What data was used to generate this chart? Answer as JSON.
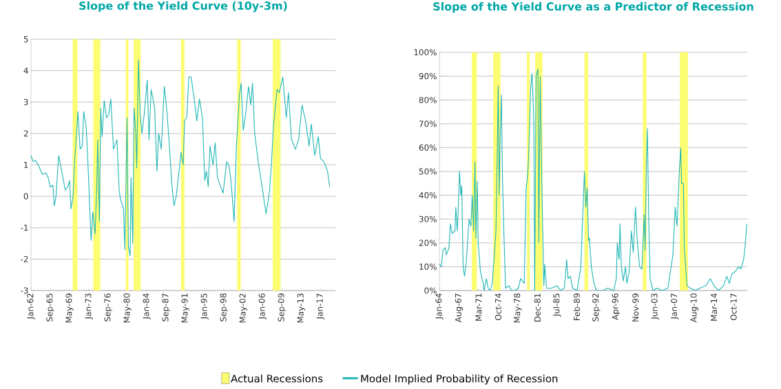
{
  "chart_data": [
    {
      "type": "line",
      "title": "Slope of the Yield Curve (10y-3m)",
      "xlim": [
        "1962-01",
        "2019-11"
      ],
      "ylim": [
        -3,
        5
      ],
      "xticks": [
        {
          "value": "1962-01",
          "label": "Jan-62"
        },
        {
          "value": "1965-09",
          "label": "Sep-65"
        },
        {
          "value": "1969-05",
          "label": "May-69"
        },
        {
          "value": "1973-01",
          "label": "Jan-73"
        },
        {
          "value": "1976-09",
          "label": "Sep-76"
        },
        {
          "value": "1980-05",
          "label": "May-80"
        },
        {
          "value": "1984-01",
          "label": "Jan-84"
        },
        {
          "value": "1987-09",
          "label": "Sep-87"
        },
        {
          "value": "1991-05",
          "label": "May-91"
        },
        {
          "value": "1995-01",
          "label": "Jan-95"
        },
        {
          "value": "1998-09",
          "label": "Sep-98"
        },
        {
          "value": "2002-05",
          "label": "May-02"
        },
        {
          "value": "2006-01",
          "label": "Jan-06"
        },
        {
          "value": "2009-09",
          "label": "Sep-09"
        },
        {
          "value": "2013-05",
          "label": "May-13"
        },
        {
          "value": "2017-01",
          "label": "Jan-17"
        }
      ],
      "yticks": [
        -3,
        -2,
        -1,
        0,
        1,
        2,
        3,
        4,
        5
      ],
      "grid": "y",
      "bands": [
        {
          "axis": "x",
          "from": "1969-12",
          "to": "1970-11",
          "label": null,
          "color": "#fdfd72"
        },
        {
          "axis": "x",
          "from": "1973-11",
          "to": "1975-03",
          "label": null,
          "color": "#fdfd72"
        },
        {
          "axis": "x",
          "from": "1980-01",
          "to": "1980-07",
          "label": null,
          "color": "#fdfd72"
        },
        {
          "axis": "x",
          "from": "1981-07",
          "to": "1982-11",
          "label": null,
          "color": "#fdfd72"
        },
        {
          "axis": "x",
          "from": "1990-07",
          "to": "1991-03",
          "label": null,
          "color": "#fdfd72"
        },
        {
          "axis": "x",
          "from": "2001-03",
          "to": "2001-11",
          "label": null,
          "color": "#fdfd72"
        },
        {
          "axis": "x",
          "from": "2007-12",
          "to": "2009-06",
          "label": null,
          "color": "#fdfd72"
        }
      ],
      "series": [
        {
          "color": "#1fb5b5",
          "x": [
            "1962-01",
            "1962-06",
            "1962-11",
            "1963-07",
            "1964-03",
            "1964-11",
            "1965-04",
            "1965-09",
            "1966-03",
            "1966-06",
            "1966-10",
            "1967-04",
            "1967-11",
            "1968-07",
            "1969-01",
            "1969-05",
            "1969-08",
            "1970-01",
            "1970-04",
            "1970-12",
            "1971-05",
            "1971-10",
            "1972-01",
            "1972-07",
            "1972-11",
            "1973-06",
            "1973-10",
            "1974-03",
            "1974-07",
            "1974-09",
            "1975-01",
            "1975-04",
            "1975-07",
            "1975-12",
            "1976-05",
            "1976-10",
            "1977-03",
            "1977-09",
            "1978-05",
            "1978-10",
            "1979-01",
            "1979-08",
            "1979-11",
            "1980-04",
            "1980-07",
            "1980-11",
            "1981-01",
            "1981-05",
            "1981-08",
            "1981-12",
            "1982-02",
            "1982-06",
            "1982-10",
            "1983-02",
            "1983-07",
            "1984-02",
            "1984-06",
            "1984-11",
            "1985-07",
            "1985-12",
            "1986-04",
            "1986-10",
            "1987-05",
            "1987-11",
            "1988-05",
            "1988-10",
            "1989-03",
            "1989-08",
            "1990-01",
            "1990-07",
            "1990-12",
            "1991-03",
            "1991-08",
            "1992-01",
            "1992-06",
            "1992-09",
            "1993-02",
            "1993-07",
            "1994-01",
            "1994-08",
            "1995-01",
            "1995-05",
            "1995-09",
            "1996-01",
            "1996-08",
            "1997-01",
            "1997-06",
            "1997-11",
            "1998-07",
            "1999-03",
            "1999-08",
            "2000-01",
            "2000-08",
            "2001-01",
            "2001-08",
            "2001-12",
            "2002-05",
            "2002-11",
            "2003-05",
            "2003-10",
            "2004-02",
            "2004-07",
            "2005-04",
            "2005-12",
            "2006-05",
            "2006-09",
            "2007-01",
            "2007-05",
            "2007-09",
            "2008-02",
            "2008-10",
            "2009-03",
            "2009-11",
            "2010-07",
            "2010-12",
            "2011-07",
            "2012-04",
            "2012-11",
            "2013-07",
            "2014-03",
            "2014-11",
            "2015-04",
            "2015-12",
            "2016-08",
            "2017-01",
            "2017-09",
            "2018-05",
            "2018-10"
          ],
          "values": [
            1.3,
            1.1,
            1.15,
            0.95,
            0.7,
            0.75,
            0.6,
            0.3,
            0.35,
            -0.3,
            0.0,
            1.3,
            0.8,
            0.2,
            0.3,
            0.5,
            -0.4,
            0.0,
            1.0,
            2.7,
            1.5,
            1.6,
            2.7,
            2.2,
            1.0,
            -1.4,
            -0.5,
            -1.2,
            0.3,
            1.8,
            -0.8,
            2.8,
            1.9,
            3.05,
            2.5,
            2.6,
            3.1,
            1.5,
            1.8,
            0.2,
            -0.1,
            -0.4,
            -1.7,
            2.5,
            -1.6,
            -1.9,
            0.6,
            -1.5,
            2.8,
            2.0,
            0.9,
            4.35,
            2.6,
            2.0,
            2.6,
            3.7,
            1.8,
            3.4,
            2.8,
            0.8,
            2.0,
            1.5,
            3.5,
            2.7,
            1.5,
            0.4,
            -0.3,
            0.0,
            0.6,
            1.4,
            1.0,
            2.4,
            2.5,
            3.8,
            3.8,
            3.5,
            3.0,
            2.4,
            3.1,
            2.5,
            0.5,
            0.8,
            0.3,
            1.6,
            1.0,
            1.7,
            0.6,
            0.4,
            0.1,
            1.1,
            1.0,
            0.5,
            -0.8,
            1.5,
            3.2,
            3.6,
            2.1,
            2.7,
            3.5,
            2.9,
            3.6,
            2.0,
            1.0,
            0.3,
            -0.2,
            -0.55,
            -0.2,
            0.2,
            1.0,
            2.3,
            3.4,
            3.3,
            3.8,
            2.5,
            3.3,
            1.8,
            1.5,
            1.8,
            2.9,
            2.4,
            1.6,
            2.3,
            1.3,
            1.9,
            1.2,
            1.1,
            0.8,
            0.3
          ]
        }
      ]
    },
    {
      "type": "line",
      "title": "Slope of the Yield Curve as a Predictor of Recession",
      "xlim": [
        "1964-01",
        "2020-04"
      ],
      "ylim": [
        0,
        100
      ],
      "xticks": [
        {
          "value": "1964-01",
          "label": "Jan-64"
        },
        {
          "value": "1967-08",
          "label": "Aug-67"
        },
        {
          "value": "1971-03",
          "label": "Mar-71"
        },
        {
          "value": "1974-10",
          "label": "Oct-74"
        },
        {
          "value": "1978-05",
          "label": "May-78"
        },
        {
          "value": "1981-12",
          "label": "Dec-81"
        },
        {
          "value": "1985-07",
          "label": "Jul-85"
        },
        {
          "value": "1989-02",
          "label": "Feb-89"
        },
        {
          "value": "1992-09",
          "label": "Sep-92"
        },
        {
          "value": "1996-04",
          "label": "Apr-96"
        },
        {
          "value": "1999-11",
          "label": "Nov-99"
        },
        {
          "value": "2003-06",
          "label": "Jun-03"
        },
        {
          "value": "2007-01",
          "label": "Jan-07"
        },
        {
          "value": "2010-08",
          "label": "Aug-10"
        },
        {
          "value": "2014-03",
          "label": "Mar-14"
        },
        {
          "value": "2017-10",
          "label": "Oct-17"
        }
      ],
      "yticks": [
        {
          "value": 0,
          "label": "0%"
        },
        {
          "value": 10,
          "label": "10%"
        },
        {
          "value": 20,
          "label": "20%"
        },
        {
          "value": 30,
          "label": "30%"
        },
        {
          "value": 40,
          "label": "40%"
        },
        {
          "value": 50,
          "label": "50%"
        },
        {
          "value": 60,
          "label": "60%"
        },
        {
          "value": 70,
          "label": "70%"
        },
        {
          "value": 80,
          "label": "80%"
        },
        {
          "value": 90,
          "label": "90%"
        },
        {
          "value": 100,
          "label": "100%"
        }
      ],
      "grid": "y",
      "legend": "bottom",
      "bands": [
        {
          "axis": "x",
          "from": "1969-12",
          "to": "1970-11",
          "label": "Actual Recessions",
          "color": "#fdfd72"
        },
        {
          "axis": "x",
          "from": "1973-11",
          "to": "1975-03",
          "label": null,
          "color": "#fdfd72"
        },
        {
          "axis": "x",
          "from": "1980-01",
          "to": "1980-07",
          "label": null,
          "color": "#fdfd72"
        },
        {
          "axis": "x",
          "from": "1981-07",
          "to": "1982-11",
          "label": null,
          "color": "#fdfd72"
        },
        {
          "axis": "x",
          "from": "1990-07",
          "to": "1991-03",
          "label": null,
          "color": "#fdfd72"
        },
        {
          "axis": "x",
          "from": "2001-03",
          "to": "2001-11",
          "label": null,
          "color": "#fdfd72"
        },
        {
          "axis": "x",
          "from": "2007-12",
          "to": "2009-06",
          "label": null,
          "color": "#fdfd72"
        }
      ],
      "series": [
        {
          "name": "Model Implied Probability of Recession",
          "color": "#1fb5b5",
          "x": [
            "1964-01",
            "1964-05",
            "1964-09",
            "1965-02",
            "1965-04",
            "1965-10",
            "1966-01",
            "1966-05",
            "1966-11",
            "1967-01",
            "1967-04",
            "1967-06",
            "1967-09",
            "1967-12",
            "1968-02",
            "1968-05",
            "1968-08",
            "1968-12",
            "1969-06",
            "1969-10",
            "1970-01",
            "1970-04",
            "1970-07",
            "1970-09",
            "1970-12",
            "1971-02",
            "1971-07",
            "1972-01",
            "1972-03",
            "1972-08",
            "1972-12",
            "1973-04",
            "1973-09",
            "1974-01",
            "1974-05",
            "1974-08",
            "1974-10",
            "1974-12",
            "1975-02",
            "1975-05",
            "1975-07",
            "1975-10",
            "1976-02",
            "1976-10",
            "1977-03",
            "1977-10",
            "1978-06",
            "1978-11",
            "1979-07",
            "1979-11",
            "1980-03",
            "1980-05",
            "1980-09",
            "1980-12",
            "1981-04",
            "1981-06",
            "1981-09",
            "1982-01",
            "1982-03",
            "1982-06",
            "1982-10",
            "1983-02",
            "1983-04",
            "1983-08",
            "1984-07",
            "1985-07",
            "1986-03",
            "1986-11",
            "1987-04",
            "1987-07",
            "1987-12",
            "1988-05",
            "1989-03",
            "1989-11",
            "1990-04",
            "1990-07",
            "1990-10",
            "1991-01",
            "1991-04",
            "1991-06",
            "1991-10",
            "1992-04",
            "1992-09",
            "1993-12",
            "1994-10",
            "1995-11",
            "1996-05",
            "1996-07",
            "1996-11",
            "1997-01",
            "1997-04",
            "1997-08",
            "1998-01",
            "1998-04",
            "1998-09",
            "1999-02",
            "1999-06",
            "1999-11",
            "2000-03",
            "2000-08",
            "2001-01",
            "2001-06",
            "2001-08",
            "2001-11",
            "2002-01",
            "2002-04",
            "2002-07",
            "2003-01",
            "2003-10",
            "2004-09",
            "2005-10",
            "2006-09",
            "2007-02",
            "2007-06",
            "2007-11",
            "2008-02",
            "2008-04",
            "2008-08",
            "2008-10",
            "2009-04",
            "2009-11",
            "2010-10",
            "2011-08",
            "2012-09",
            "2013-07",
            "2014-03",
            "2015-01",
            "2015-12",
            "2016-07",
            "2017-01",
            "2017-06",
            "2018-02",
            "2018-09",
            "2019-02",
            "2019-08",
            "2019-11",
            "2020-03"
          ],
          "values": [
            11,
            10,
            17,
            18,
            15,
            18,
            28,
            24,
            25,
            35,
            25,
            32,
            50,
            40,
            44,
            10,
            6,
            12,
            30,
            27,
            40,
            25,
            54,
            22,
            46,
            20,
            8,
            3,
            0,
            5,
            1,
            0,
            3,
            14,
            25,
            60,
            86,
            40,
            63,
            82,
            50,
            27,
            1,
            2,
            0,
            0,
            1,
            5,
            3,
            42,
            50,
            58,
            85,
            91,
            72,
            0,
            90,
            93,
            20,
            90,
            40,
            2,
            11,
            1,
            1,
            2,
            0,
            1,
            13,
            5,
            6,
            1,
            0,
            10,
            35,
            50,
            35,
            43,
            21,
            22,
            10,
            3,
            0,
            0,
            1,
            0,
            5,
            20,
            13,
            28,
            10,
            4,
            10,
            3,
            8,
            25,
            16,
            35,
            20,
            10,
            9,
            32,
            17,
            55,
            68,
            30,
            5,
            0,
            1,
            0,
            1,
            15,
            35,
            27,
            50,
            60,
            45,
            45,
            18,
            2,
            1,
            0,
            1,
            2,
            5,
            2,
            0,
            2,
            6,
            3,
            7,
            8,
            10,
            9,
            13,
            18,
            28
          ]
        }
      ]
    }
  ]
}
